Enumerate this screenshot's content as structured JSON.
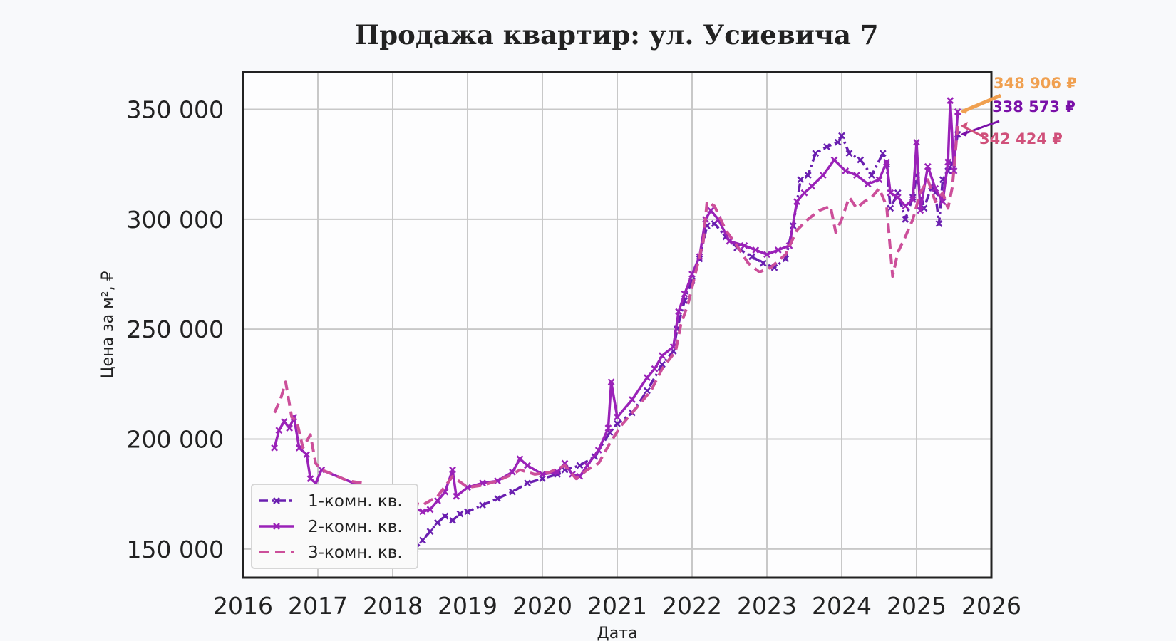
{
  "chart_data": {
    "type": "line",
    "title": "Продажа квартир: ул. Усиевича 7",
    "xlabel": "Дата",
    "ylabel": "Цена за м², ₽",
    "xlim": [
      2016.0,
      2026.0
    ],
    "ylim": [
      137000,
      367000
    ],
    "x_ticks": [
      2016,
      2017,
      2018,
      2019,
      2020,
      2021,
      2022,
      2023,
      2024,
      2025,
      2026
    ],
    "x_tick_labels": [
      "2016",
      "2017",
      "2018",
      "2019",
      "2020",
      "2021",
      "2022",
      "2023",
      "2024",
      "2025",
      "2026"
    ],
    "y_ticks": [
      150000,
      200000,
      250000,
      300000,
      350000
    ],
    "y_tick_labels": [
      "150 000",
      "200 000",
      "250 000",
      "300 000",
      "350 000"
    ],
    "grid": true,
    "legend_position": "bottom-left",
    "series": [
      {
        "name": "1-комн. кв.",
        "color": "#6a1fb0",
        "style": "dashdot",
        "marker": "x",
        "points": [
          [
            2016.55,
            160000
          ],
          [
            2016.6,
            162000
          ],
          [
            2016.7,
            165000
          ],
          [
            2016.8,
            168000
          ],
          [
            2018.3,
            150000
          ],
          [
            2018.4,
            154000
          ],
          [
            2018.5,
            158000
          ],
          [
            2018.6,
            162000
          ],
          [
            2018.7,
            165000
          ],
          [
            2018.8,
            163000
          ],
          [
            2018.9,
            166000
          ],
          [
            2019.0,
            167000
          ],
          [
            2019.2,
            170000
          ],
          [
            2019.4,
            173000
          ],
          [
            2019.6,
            176000
          ],
          [
            2019.8,
            180000
          ],
          [
            2020.0,
            182000
          ],
          [
            2020.2,
            184000
          ],
          [
            2020.3,
            186000
          ],
          [
            2020.5,
            188000
          ],
          [
            2020.7,
            192000
          ],
          [
            2020.9,
            203000
          ],
          [
            2021.0,
            207000
          ],
          [
            2021.2,
            212000
          ],
          [
            2021.4,
            222000
          ],
          [
            2021.6,
            234000
          ],
          [
            2021.75,
            240000
          ],
          [
            2021.8,
            250000
          ],
          [
            2021.9,
            263000
          ],
          [
            2022.0,
            272000
          ],
          [
            2022.1,
            282000
          ],
          [
            2022.2,
            297000
          ],
          [
            2022.3,
            298000
          ],
          [
            2022.45,
            292000
          ],
          [
            2022.6,
            287000
          ],
          [
            2022.8,
            283000
          ],
          [
            2022.95,
            280000
          ],
          [
            2023.1,
            278000
          ],
          [
            2023.25,
            282000
          ],
          [
            2023.35,
            297000
          ],
          [
            2023.45,
            318000
          ],
          [
            2023.55,
            320000
          ],
          [
            2023.65,
            330000
          ],
          [
            2023.8,
            333000
          ],
          [
            2023.95,
            335000
          ],
          [
            2024.0,
            338000
          ],
          [
            2024.1,
            330000
          ],
          [
            2024.25,
            327000
          ],
          [
            2024.4,
            320000
          ],
          [
            2024.55,
            330000
          ],
          [
            2024.6,
            325000
          ],
          [
            2024.65,
            305000
          ],
          [
            2024.75,
            312000
          ],
          [
            2024.85,
            300000
          ],
          [
            2024.95,
            310000
          ],
          [
            2025.0,
            320000
          ],
          [
            2025.1,
            305000
          ],
          [
            2025.2,
            315000
          ],
          [
            2025.25,
            312000
          ],
          [
            2025.3,
            298000
          ],
          [
            2025.35,
            318000
          ],
          [
            2025.42,
            322000
          ],
          [
            2025.48,
            325000
          ],
          [
            2025.55,
            338573
          ]
        ]
      },
      {
        "name": "2-комн. кв.",
        "color": "#9a22b8",
        "style": "solid",
        "marker": "x",
        "points": [
          [
            2016.42,
            196000
          ],
          [
            2016.48,
            204000
          ],
          [
            2016.55,
            208000
          ],
          [
            2016.62,
            205000
          ],
          [
            2016.68,
            210000
          ],
          [
            2016.75,
            196000
          ],
          [
            2016.85,
            193000
          ],
          [
            2016.9,
            182000
          ],
          [
            2016.97,
            180000
          ],
          [
            2017.05,
            186000
          ],
          [
            2018.4,
            167000
          ],
          [
            2018.5,
            168000
          ],
          [
            2018.6,
            172000
          ],
          [
            2018.7,
            176000
          ],
          [
            2018.8,
            186000
          ],
          [
            2018.85,
            174000
          ],
          [
            2019.0,
            178000
          ],
          [
            2019.2,
            180000
          ],
          [
            2019.4,
            181000
          ],
          [
            2019.6,
            185000
          ],
          [
            2019.7,
            191000
          ],
          [
            2019.8,
            188000
          ],
          [
            2020.0,
            184000
          ],
          [
            2020.2,
            185000
          ],
          [
            2020.3,
            189000
          ],
          [
            2020.4,
            184000
          ],
          [
            2020.5,
            183000
          ],
          [
            2020.6,
            188000
          ],
          [
            2020.75,
            195000
          ],
          [
            2020.88,
            205000
          ],
          [
            2020.92,
            226000
          ],
          [
            2021.0,
            210000
          ],
          [
            2021.2,
            218000
          ],
          [
            2021.4,
            228000
          ],
          [
            2021.5,
            232000
          ],
          [
            2021.6,
            238000
          ],
          [
            2021.75,
            242000
          ],
          [
            2021.82,
            258000
          ],
          [
            2021.9,
            266000
          ],
          [
            2022.0,
            275000
          ],
          [
            2022.1,
            283000
          ],
          [
            2022.18,
            300000
          ],
          [
            2022.25,
            304000
          ],
          [
            2022.35,
            300000
          ],
          [
            2022.5,
            290000
          ],
          [
            2022.7,
            288000
          ],
          [
            2022.85,
            286000
          ],
          [
            2023.0,
            284000
          ],
          [
            2023.15,
            286000
          ],
          [
            2023.3,
            288000
          ],
          [
            2023.4,
            308000
          ],
          [
            2023.5,
            312000
          ],
          [
            2023.6,
            315000
          ],
          [
            2023.75,
            320000
          ],
          [
            2023.9,
            327000
          ],
          [
            2024.05,
            322000
          ],
          [
            2024.2,
            320000
          ],
          [
            2024.35,
            316000
          ],
          [
            2024.5,
            318000
          ],
          [
            2024.6,
            326000
          ],
          [
            2024.65,
            312000
          ],
          [
            2024.75,
            310000
          ],
          [
            2024.85,
            306000
          ],
          [
            2024.95,
            309000
          ],
          [
            2025.0,
            335000
          ],
          [
            2025.05,
            304000
          ],
          [
            2025.15,
            324000
          ],
          [
            2025.25,
            314000
          ],
          [
            2025.35,
            308000
          ],
          [
            2025.42,
            326000
          ],
          [
            2025.45,
            354000
          ],
          [
            2025.5,
            322000
          ],
          [
            2025.55,
            348906
          ]
        ]
      },
      {
        "name": "3-комн. кв.",
        "color": "#cc4f9a",
        "style": "dashed",
        "marker": "",
        "points": [
          [
            2016.42,
            212000
          ],
          [
            2016.5,
            218000
          ],
          [
            2016.57,
            226000
          ],
          [
            2016.65,
            210000
          ],
          [
            2016.72,
            208000
          ],
          [
            2016.8,
            196000
          ],
          [
            2016.9,
            202000
          ],
          [
            2016.97,
            189000
          ],
          [
            2017.05,
            186000
          ],
          [
            2017.2,
            184000
          ],
          [
            2017.4,
            181000
          ],
          [
            2017.6,
            180000
          ],
          [
            2017.7,
            176000
          ],
          [
            2018.4,
            170000
          ],
          [
            2018.6,
            174000
          ],
          [
            2018.8,
            183000
          ],
          [
            2019.0,
            178000
          ],
          [
            2019.2,
            179000
          ],
          [
            2019.4,
            181000
          ],
          [
            2019.6,
            184000
          ],
          [
            2019.7,
            186000
          ],
          [
            2019.9,
            184000
          ],
          [
            2020.1,
            185000
          ],
          [
            2020.3,
            188000
          ],
          [
            2020.45,
            182000
          ],
          [
            2020.6,
            186000
          ],
          [
            2020.75,
            189000
          ],
          [
            2020.9,
            198000
          ],
          [
            2021.05,
            206000
          ],
          [
            2021.25,
            214000
          ],
          [
            2021.45,
            222000
          ],
          [
            2021.6,
            232000
          ],
          [
            2021.78,
            240000
          ],
          [
            2021.85,
            252000
          ],
          [
            2021.95,
            262000
          ],
          [
            2022.05,
            276000
          ],
          [
            2022.15,
            290000
          ],
          [
            2022.2,
            308000
          ],
          [
            2022.3,
            306000
          ],
          [
            2022.45,
            295000
          ],
          [
            2022.6,
            288000
          ],
          [
            2022.75,
            280000
          ],
          [
            2022.9,
            276000
          ],
          [
            2023.05,
            278000
          ],
          [
            2023.25,
            284000
          ],
          [
            2023.4,
            295000
          ],
          [
            2023.55,
            300000
          ],
          [
            2023.7,
            304000
          ],
          [
            2023.85,
            306000
          ],
          [
            2023.92,
            294000
          ],
          [
            2024.0,
            300000
          ],
          [
            2024.1,
            310000
          ],
          [
            2024.2,
            305000
          ],
          [
            2024.3,
            308000
          ],
          [
            2024.4,
            310000
          ],
          [
            2024.5,
            314000
          ],
          [
            2024.6,
            306000
          ],
          [
            2024.68,
            274000
          ],
          [
            2024.75,
            285000
          ],
          [
            2024.85,
            292000
          ],
          [
            2024.95,
            300000
          ],
          [
            2025.05,
            312000
          ],
          [
            2025.15,
            318000
          ],
          [
            2025.25,
            308000
          ],
          [
            2025.35,
            312000
          ],
          [
            2025.42,
            305000
          ],
          [
            2025.48,
            315000
          ],
          [
            2025.55,
            342424
          ]
        ]
      }
    ],
    "annotations": [
      {
        "text": "348 906 ₽",
        "color": "#f0a050",
        "series": "2-комн. кв."
      },
      {
        "text": "338 573 ₽",
        "color": "#7a10a8",
        "series": "1-комн. кв."
      },
      {
        "text": "342 424 ₽",
        "color": "#d0507a",
        "series": "3-комн. кв."
      }
    ]
  }
}
